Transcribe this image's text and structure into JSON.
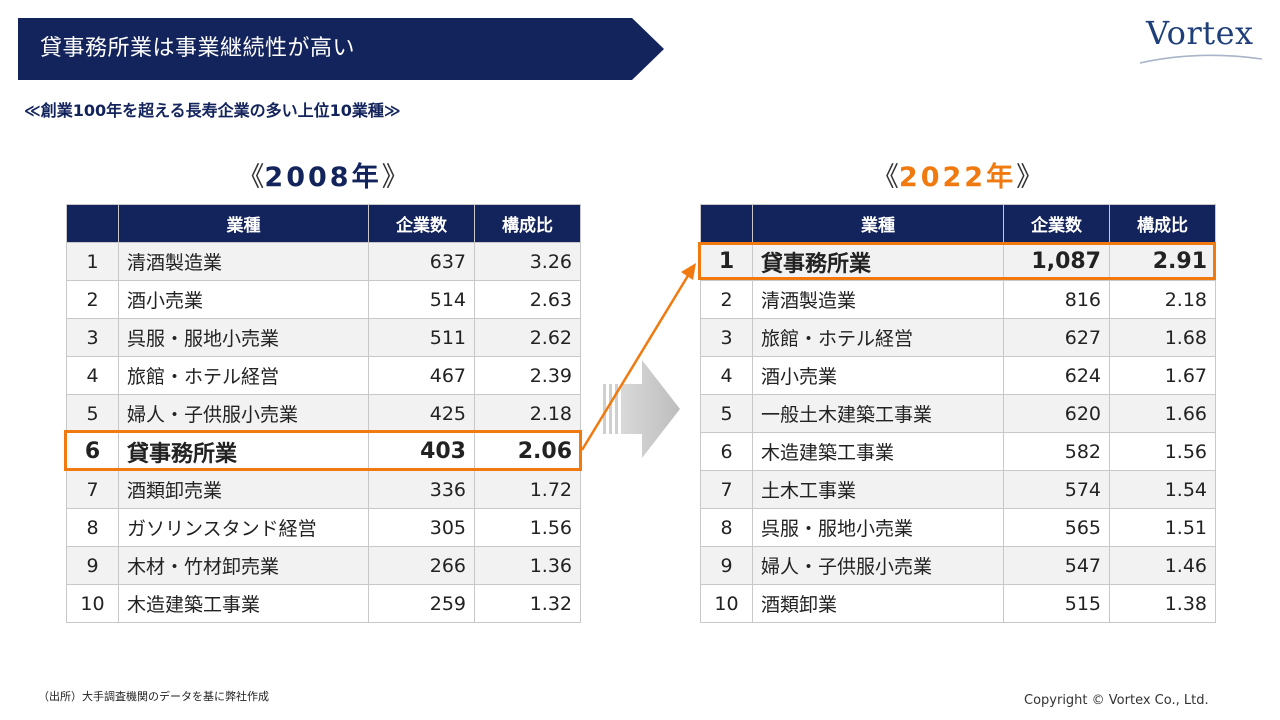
{
  "header": {
    "title": "貸事務所業は事業継続性が高い",
    "logo": "Vortex"
  },
  "subtitle": "≪創業100年を超える長寿企業の多い上位10業種≫",
  "columns": {
    "industry": "業種",
    "companies": "企業数",
    "ratio": "構成比"
  },
  "table_2008": {
    "bracket_left": "《",
    "year": "2008年",
    "bracket_right": "》",
    "rows": [
      {
        "rank": "1",
        "industry": "清酒製造業",
        "companies": "637",
        "ratio": "3.26"
      },
      {
        "rank": "2",
        "industry": "酒小売業",
        "companies": "514",
        "ratio": "2.63"
      },
      {
        "rank": "3",
        "industry": "呉服・服地小売業",
        "companies": "511",
        "ratio": "2.62"
      },
      {
        "rank": "4",
        "industry": "旅館・ホテル経営",
        "companies": "467",
        "ratio": "2.39"
      },
      {
        "rank": "5",
        "industry": "婦人・子供服小売業",
        "companies": "425",
        "ratio": "2.18"
      },
      {
        "rank": "6",
        "industry": "貸事務所業",
        "companies": "403",
        "ratio": "2.06"
      },
      {
        "rank": "7",
        "industry": "酒類卸売業",
        "companies": "336",
        "ratio": "1.72"
      },
      {
        "rank": "8",
        "industry": "ガソリンスタンド経営",
        "companies": "305",
        "ratio": "1.56"
      },
      {
        "rank": "9",
        "industry": "木材・竹材卸売業",
        "companies": "266",
        "ratio": "1.36"
      },
      {
        "rank": "10",
        "industry": "木造建築工事業",
        "companies": "259",
        "ratio": "1.32"
      }
    ]
  },
  "table_2022": {
    "bracket_left": "《",
    "year": "2022年",
    "bracket_right": "》",
    "rows": [
      {
        "rank": "1",
        "industry": "貸事務所業",
        "companies": "1,087",
        "ratio": "2.91"
      },
      {
        "rank": "2",
        "industry": "清酒製造業",
        "companies": "816",
        "ratio": "2.18"
      },
      {
        "rank": "3",
        "industry": "旅館・ホテル経営",
        "companies": "627",
        "ratio": "1.68"
      },
      {
        "rank": "4",
        "industry": "酒小売業",
        "companies": "624",
        "ratio": "1.67"
      },
      {
        "rank": "5",
        "industry": "一般土木建築工事業",
        "companies": "620",
        "ratio": "1.66"
      },
      {
        "rank": "6",
        "industry": "木造建築工事業",
        "companies": "582",
        "ratio": "1.56"
      },
      {
        "rank": "7",
        "industry": "土木工事業",
        "companies": "574",
        "ratio": "1.54"
      },
      {
        "rank": "8",
        "industry": "呉服・服地小売業",
        "companies": "565",
        "ratio": "1.51"
      },
      {
        "rank": "9",
        "industry": "婦人・子供服小売業",
        "companies": "547",
        "ratio": "1.46"
      },
      {
        "rank": "10",
        "industry": "酒類卸業",
        "companies": "515",
        "ratio": "1.38"
      }
    ]
  },
  "footer": {
    "source": "（出所）大手調査機関のデータを基に弊社作成",
    "copyright": "Copyright © Vortex Co., Ltd."
  },
  "colors": {
    "navy": "#13235b",
    "orange": "#f07a10",
    "row_alt": "#f2f2f2"
  }
}
